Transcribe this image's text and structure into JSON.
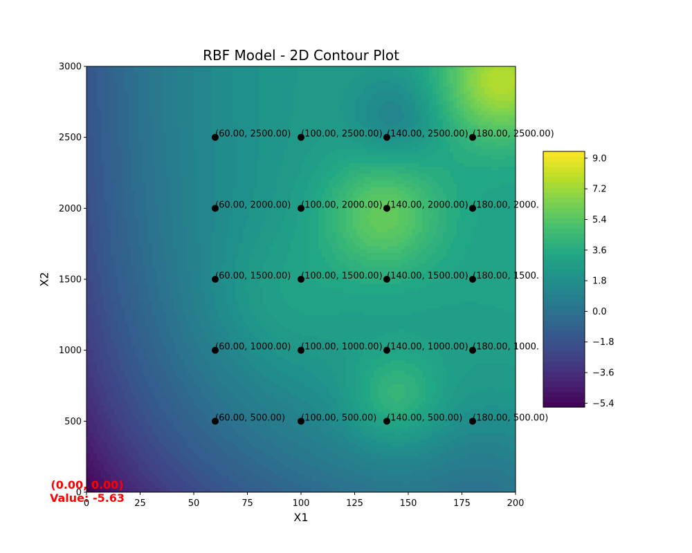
{
  "chart_data": {
    "type": "heatmap",
    "title": "RBF Model - 2D Contour Plot",
    "xlabel": "X1",
    "ylabel": "X2",
    "xlim": [
      0,
      200
    ],
    "ylim": [
      0,
      3000
    ],
    "x_ticks": [
      "0",
      "25",
      "50",
      "75",
      "100",
      "125",
      "150",
      "175",
      "200"
    ],
    "y_ticks": [
      "0",
      "500",
      "1000",
      "1500",
      "2000",
      "2500",
      "3000"
    ],
    "colormap": "viridis",
    "colorbar": {
      "min": -5.63,
      "max": 9.4,
      "ticks": [
        "−5.4",
        "−3.6",
        "−1.8",
        "0.0",
        "1.8",
        "3.6",
        "5.4",
        "7.2",
        "9.0"
      ]
    },
    "points": [
      {
        "x": 60,
        "y": 500,
        "label": "(60.00, 500.00)"
      },
      {
        "x": 100,
        "y": 500,
        "label": "(100.00, 500.00)"
      },
      {
        "x": 140,
        "y": 500,
        "label": "(140.00, 500.00)"
      },
      {
        "x": 180,
        "y": 500,
        "label": "(180.00, 500.00)"
      },
      {
        "x": 60,
        "y": 1000,
        "label": "(60.00, 1000.00)"
      },
      {
        "x": 100,
        "y": 1000,
        "label": "(100.00, 1000.00)"
      },
      {
        "x": 140,
        "y": 1000,
        "label": "(140.00, 1000.00)"
      },
      {
        "x": 180,
        "y": 1000,
        "label": "(180.00, 1000."
      },
      {
        "x": 60,
        "y": 1500,
        "label": "(60.00, 1500.00)"
      },
      {
        "x": 100,
        "y": 1500,
        "label": "(100.00, 1500.00)"
      },
      {
        "x": 140,
        "y": 1500,
        "label": "(140.00, 1500.00)"
      },
      {
        "x": 180,
        "y": 1500,
        "label": "(180.00, 1500."
      },
      {
        "x": 60,
        "y": 2000,
        "label": "(60.00, 2000.00)"
      },
      {
        "x": 100,
        "y": 2000,
        "label": "(100.00, 2000.00)"
      },
      {
        "x": 140,
        "y": 2000,
        "label": "(140.00, 2000.00)"
      },
      {
        "x": 180,
        "y": 2000,
        "label": "(180.00, 2000."
      },
      {
        "x": 60,
        "y": 2500,
        "label": "(60.00, 2500.00)"
      },
      {
        "x": 100,
        "y": 2500,
        "label": "(100.00, 2500.00)"
      },
      {
        "x": 140,
        "y": 2500,
        "label": "(140.00, 2500.00)"
      },
      {
        "x": 180,
        "y": 2500,
        "label": "(180.00, 2500.00)"
      }
    ],
    "annotation": {
      "coords": "(0.00, 0.00)",
      "value": "Value: -5.63",
      "color": "#ff0000"
    }
  }
}
